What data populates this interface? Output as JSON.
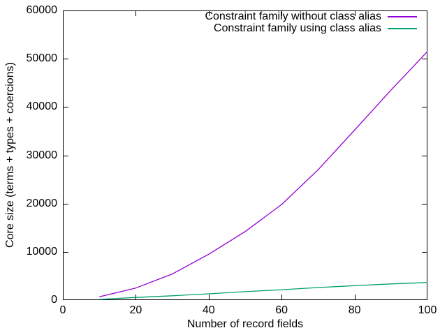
{
  "axes": {
    "x": {
      "label": "Number of record fields",
      "ticks": [
        0,
        20,
        40,
        60,
        80,
        100
      ]
    },
    "y": {
      "label": "Core size (terms + types + coercions)",
      "ticks": [
        0,
        10000,
        20000,
        30000,
        40000,
        50000,
        60000
      ]
    }
  },
  "legend": [
    {
      "label": "Constraint family without class alias",
      "color": "#9400d3"
    },
    {
      "label": "Constraint family using class alias",
      "color": "#009e73"
    }
  ],
  "chart_data": {
    "type": "line",
    "title": "",
    "xlabel": "Number of record fields",
    "ylabel": "Core size (terms + types + coercions)",
    "xlim": [
      0,
      100
    ],
    "ylim": [
      0,
      60000
    ],
    "grid": false,
    "legend_position": "top-right-inside",
    "x": [
      10,
      20,
      30,
      40,
      50,
      60,
      70,
      80,
      90,
      100
    ],
    "series": [
      {
        "name": "Constraint family without class alias",
        "color": "#9400d3",
        "values": [
          700,
          2500,
          5400,
          9500,
          14200,
          19800,
          27000,
          35200,
          43500,
          51500
        ]
      },
      {
        "name": "Constraint family using class alias",
        "color": "#009e73",
        "values": [
          150,
          550,
          900,
          1300,
          1750,
          2150,
          2600,
          3000,
          3350,
          3650
        ]
      }
    ]
  },
  "colors": {
    "frame": "#000000",
    "background": "#ffffff",
    "text": "#000000"
  }
}
